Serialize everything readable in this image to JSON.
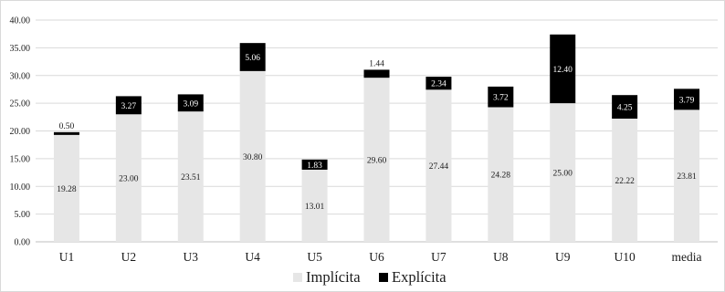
{
  "chart_data": {
    "type": "bar",
    "stacked": true,
    "categories": [
      "U1",
      "U2",
      "U3",
      "U4",
      "U5",
      "U6",
      "U7",
      "U8",
      "U9",
      "U10",
      "media"
    ],
    "series": [
      {
        "name": "Implícita",
        "color": "#e6e6e6",
        "values": [
          19.28,
          23.0,
          23.51,
          30.8,
          13.01,
          29.6,
          27.44,
          24.28,
          25.0,
          22.22,
          23.81
        ],
        "labels": [
          "19.28",
          "23.00",
          "23.51",
          "30.80",
          "13.01",
          "29.60",
          "27.44",
          "24.28",
          "25.00",
          "22.22",
          "23.81"
        ]
      },
      {
        "name": "Explícita",
        "color": "#000000",
        "values": [
          0.5,
          3.27,
          3.09,
          5.06,
          1.83,
          1.44,
          2.34,
          3.72,
          12.4,
          4.25,
          3.79
        ],
        "labels": [
          "0.50",
          "3.27",
          "3.09",
          "5.06",
          "1.83",
          "1.44",
          "2.34",
          "3.72",
          "12.40",
          "4.25",
          "3.79"
        ]
      }
    ],
    "y_ticks": [
      "0.00",
      "5.00",
      "10.00",
      "15.00",
      "20.00",
      "25.00",
      "30.00",
      "35.00",
      "40.00"
    ],
    "ylim": [
      0,
      40
    ],
    "grid": true,
    "legend": "bottom-center"
  }
}
